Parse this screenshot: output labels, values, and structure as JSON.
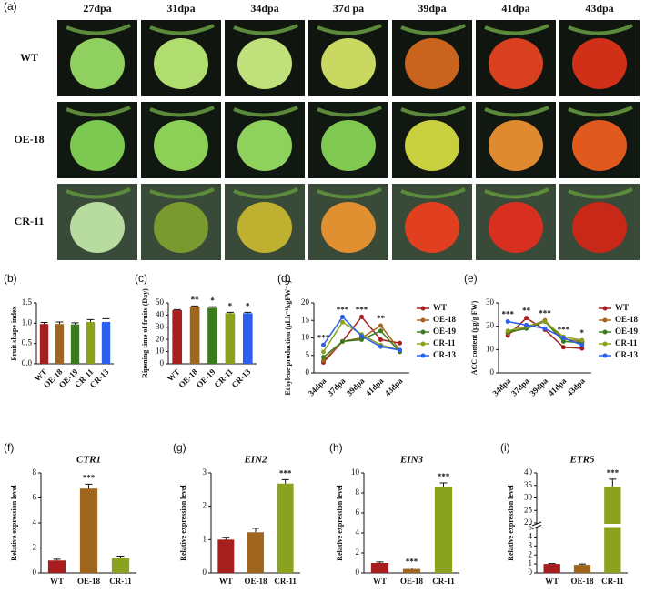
{
  "photo_panel": {
    "panel": "(a)",
    "columns": [
      "27dpa",
      "31dpa",
      "34dpa",
      "37d pa",
      "39dpa",
      "41dpa",
      "43dpa"
    ],
    "rows": [
      "WT",
      "OE-18",
      "CR-11"
    ]
  },
  "chart_data": [
    {
      "type": "bar",
      "panel": "(b)",
      "ylabel": "Fruit shape index",
      "categories": [
        "WT",
        "OE-18",
        "OE-19",
        "CR-11",
        "CR-13"
      ],
      "values": [
        0.98,
        0.98,
        0.97,
        1.03,
        1.03
      ],
      "errors": [
        0.04,
        0.05,
        0.04,
        0.06,
        0.08
      ],
      "colors": [
        "#a61e1e",
        "#a0661e",
        "#3b7a1e",
        "#8aa21e",
        "#2b5ff0"
      ],
      "ylim": [
        0,
        1.5
      ],
      "yticks": [
        {
          "value": 0,
          "label": "0.0"
        },
        {
          "value": 0.5,
          "label": "0.5"
        },
        {
          "value": 1,
          "label": "1.0"
        },
        {
          "value": 1.5,
          "label": "1.5"
        }
      ],
      "x_label_rotation": 45
    },
    {
      "type": "bar",
      "panel": "(c)",
      "ylabel": "Ripening time of fruits (Day)",
      "categories": [
        "WT",
        "OE-18",
        "OE-19",
        "CR-11",
        "CR-13"
      ],
      "values": [
        44,
        47,
        46,
        41.5,
        41.5
      ],
      "errors": [
        0.5,
        0.5,
        0.8,
        0.8,
        0.8
      ],
      "annotations": [
        null,
        "**",
        "*",
        "*",
        "*"
      ],
      "colors": [
        "#a61e1e",
        "#a0661e",
        "#3b7a1e",
        "#8aa21e",
        "#2b5ff0"
      ],
      "ylim": [
        0,
        50
      ],
      "yticks": [
        0,
        10,
        20,
        30,
        40,
        50
      ],
      "x_label_rotation": 45
    },
    {
      "type": "line",
      "panel": "(d)",
      "ylabel": "Ethylene production (μLh⁻¹kgFW⁻¹)",
      "categories": [
        "34dpa",
        "37dpa",
        "39dpa",
        "41dpa",
        "43dpa"
      ],
      "series": [
        {
          "name": "WT",
          "color": "#a61e1e",
          "values": [
            3,
            9,
            16,
            9.5,
            8.5
          ]
        },
        {
          "name": "OE-18",
          "color": "#a0661e",
          "values": [
            3.5,
            9,
            10,
            13.5,
            6.5
          ]
        },
        {
          "name": "OE-19",
          "color": "#3b7a1e",
          "values": [
            4.5,
            9,
            9.5,
            12,
            6
          ]
        },
        {
          "name": "CR-11",
          "color": "#8aa21e",
          "values": [
            6,
            14.5,
            11,
            8,
            6.5
          ]
        },
        {
          "name": "CR-13",
          "color": "#2b5ff0",
          "values": [
            8,
            16,
            10.5,
            7.5,
            6.5
          ]
        }
      ],
      "annotations": [
        "***",
        "***",
        "***",
        "**",
        null
      ],
      "ylim": [
        0,
        20
      ],
      "yticks": [
        0,
        5,
        10,
        15,
        20
      ],
      "x_label_rotation": 45
    },
    {
      "type": "line",
      "panel": "(e)",
      "ylabel": "ACC content (μg/g FW)",
      "categories": [
        "34dpa",
        "37dpa",
        "39dpa",
        "41dpa",
        "43dpa"
      ],
      "series": [
        {
          "name": "WT",
          "color": "#a61e1e",
          "values": [
            16,
            23.5,
            18.5,
            11,
            10.5
          ]
        },
        {
          "name": "OE-18",
          "color": "#a0661e",
          "values": [
            17,
            19.5,
            22.5,
            14.5,
            13.5
          ]
        },
        {
          "name": "OE-19",
          "color": "#3b7a1e",
          "values": [
            17.5,
            19,
            22,
            13.5,
            13
          ]
        },
        {
          "name": "CR-11",
          "color": "#8aa21e",
          "values": [
            18,
            20,
            22,
            15.5,
            14
          ]
        },
        {
          "name": "CR-13",
          "color": "#2b5ff0",
          "values": [
            22,
            20.5,
            19,
            15,
            12
          ]
        }
      ],
      "annotations": [
        "***",
        "**",
        "***",
        "***",
        "*"
      ],
      "ylim": [
        0,
        30
      ],
      "yticks": [
        0,
        10,
        20,
        30
      ],
      "x_label_rotation": 45
    },
    {
      "type": "bar",
      "panel": "(f)",
      "title": "CTR1",
      "ylabel": "Relative expression level",
      "categories": [
        "WT",
        "OE-18",
        "CR-11"
      ],
      "values": [
        1,
        6.75,
        1.2
      ],
      "errors": [
        0.1,
        0.35,
        0.15
      ],
      "annotations": [
        null,
        "***",
        null
      ],
      "colors": [
        "#a61e1e",
        "#a0661e",
        "#8aa21e"
      ],
      "ylim": [
        0,
        8
      ],
      "yticks": [
        0,
        2,
        4,
        6,
        8
      ]
    },
    {
      "type": "bar",
      "panel": "(g)",
      "title": "EIN2",
      "ylabel": "Relative expression level",
      "categories": [
        "WT",
        "OE-18",
        "CR-11"
      ],
      "values": [
        1,
        1.22,
        2.68
      ],
      "errors": [
        0.07,
        0.12,
        0.12
      ],
      "annotations": [
        null,
        null,
        "***"
      ],
      "colors": [
        "#a61e1e",
        "#a0661e",
        "#8aa21e"
      ],
      "ylim": [
        0,
        3
      ],
      "yticks": [
        0,
        1,
        2,
        3
      ]
    },
    {
      "type": "bar",
      "panel": "(h)",
      "title": "EIN3",
      "ylabel": "Relative expression level",
      "categories": [
        "WT",
        "OE-18",
        "CR-11"
      ],
      "values": [
        1,
        0.4,
        8.6
      ],
      "errors": [
        0.1,
        0.1,
        0.4
      ],
      "annotations": [
        null,
        "***",
        "***"
      ],
      "colors": [
        "#a61e1e",
        "#a0661e",
        "#8aa21e"
      ],
      "ylim": [
        0,
        10
      ],
      "yticks": [
        0,
        2,
        4,
        6,
        8,
        10
      ]
    },
    {
      "type": "bar",
      "panel": "(i)",
      "title": "ETR5",
      "ylabel": "Relative expression level",
      "categories": [
        "WT",
        "OE-18",
        "CR-11"
      ],
      "values": [
        1,
        0.9,
        34.5
      ],
      "errors": [
        0.05,
        0.1,
        3
      ],
      "annotations": [
        null,
        null,
        "***"
      ],
      "colors": [
        "#a61e1e",
        "#a0661e",
        "#8aa21e"
      ],
      "ylim": [
        0,
        40
      ],
      "axis_break": [
        5,
        20
      ],
      "yticks": [
        0,
        1,
        2,
        3,
        4,
        5,
        20,
        25,
        30,
        35,
        40
      ]
    }
  ]
}
